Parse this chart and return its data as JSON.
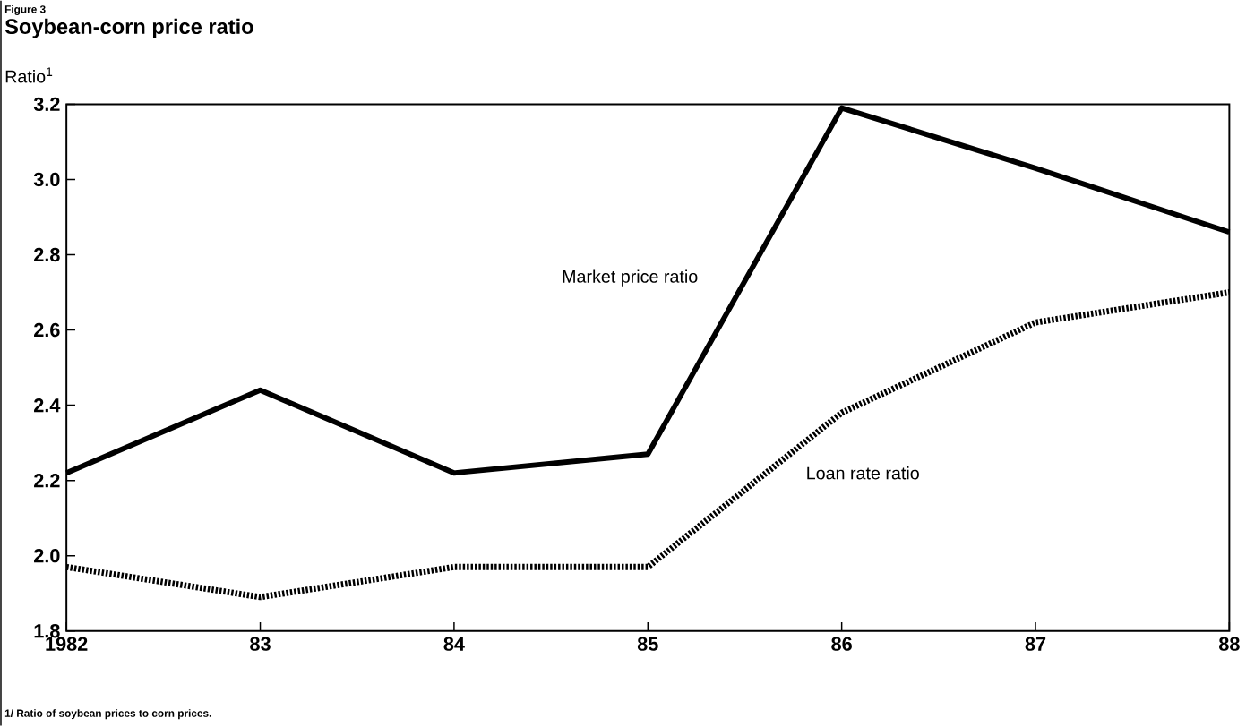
{
  "chart_data": {
    "type": "line",
    "subtitle": "Figure 3",
    "title": "Soybean-corn price ratio",
    "ylabel": "Ratio$^{1}$",
    "x": [
      1982,
      1983,
      1984,
      1985,
      1986,
      1987,
      1988
    ],
    "xlim": [
      1982,
      1988
    ],
    "xticks": [
      {
        "value": 1982,
        "label": "1982"
      },
      {
        "value": 1983,
        "label": "83"
      },
      {
        "value": 1984,
        "label": "84"
      },
      {
        "value": 1985,
        "label": "85"
      },
      {
        "value": 1986,
        "label": "86"
      },
      {
        "value": 1987,
        "label": "87"
      },
      {
        "value": 1988,
        "label": "88"
      }
    ],
    "ylim": [
      1.8,
      3.2
    ],
    "yticks": [
      {
        "value": 1.8,
        "label": "1.8"
      },
      {
        "value": 2.0,
        "label": "2.0"
      },
      {
        "value": 2.2,
        "label": "2.2"
      },
      {
        "value": 2.4,
        "label": "2.4"
      },
      {
        "value": 2.6,
        "label": "2.6"
      },
      {
        "value": 2.8,
        "label": "2.8"
      },
      {
        "value": 3.0,
        "label": "3.0"
      },
      {
        "value": 3.2,
        "label": "3.2"
      }
    ],
    "series": [
      {
        "name": "Market price ratio",
        "color": "#000000",
        "line_style": "solid",
        "values": [
          2.22,
          2.44,
          2.22,
          2.27,
          3.19,
          3.03,
          2.86
        ]
      },
      {
        "name": "Loan rate ratio",
        "color": "#000000",
        "line_style": "dotted",
        "values": [
          1.97,
          1.89,
          1.97,
          1.97,
          2.38,
          2.62,
          2.7
        ]
      }
    ],
    "annotations": [
      "1/ Ratio of soybean prices to corn prices."
    ],
    "grid": false,
    "marker": "none"
  }
}
